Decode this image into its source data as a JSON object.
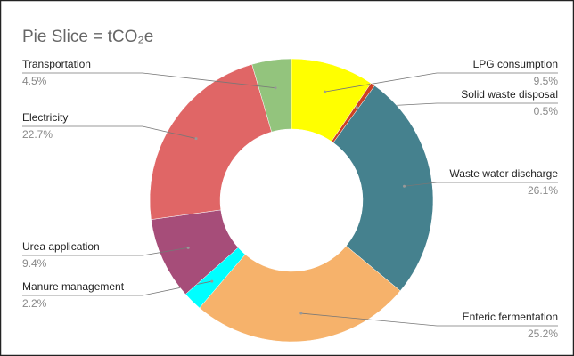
{
  "chart_data": {
    "type": "donut",
    "title": "Pie Slice = tCO₂e",
    "categories": [
      "LPG consumption",
      "Solid waste disposal",
      "Waste water discharge",
      "Enteric fermentation",
      "Manure management",
      "Urea application",
      "Electricity",
      "Transportation"
    ],
    "values": [
      9.5,
      0.5,
      26.1,
      25.2,
      2.2,
      9.4,
      22.7,
      4.5
    ],
    "value_labels": [
      "9.5%",
      "0.5%",
      "26.1%",
      "25.2%",
      "2.2%",
      "9.4%",
      "22.7%",
      "4.5%"
    ],
    "colors": [
      "#ffff00",
      "#cc4125",
      "#45818e",
      "#f6b26b",
      "#00ffff",
      "#a64d79",
      "#e06666",
      "#93c47d"
    ]
  }
}
